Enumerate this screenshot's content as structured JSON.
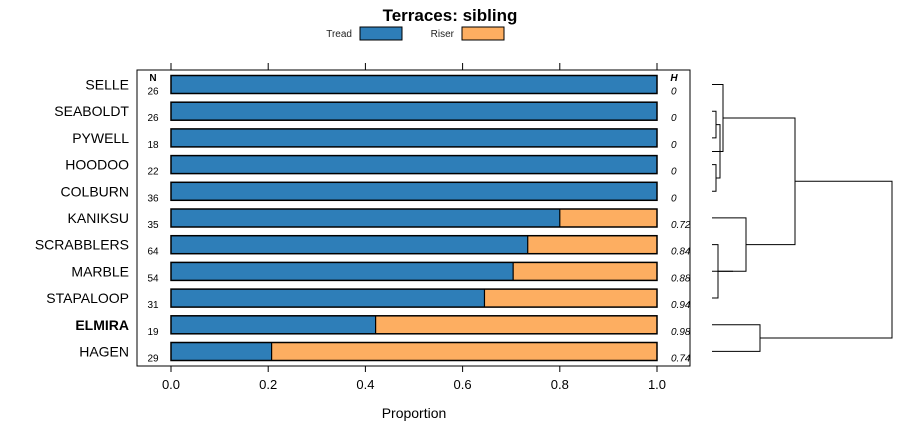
{
  "chart_data": {
    "type": "bar",
    "orientation": "horizontal",
    "stacked": true,
    "title": "Terraces: sibling",
    "xlabel": "Proportion",
    "ylabel": "",
    "xlim": [
      0,
      1
    ],
    "x_ticks": [
      "0.0",
      "0.2",
      "0.4",
      "0.6",
      "0.8",
      "1.0"
    ],
    "n_header": "N",
    "h_header": "H",
    "highlight": "ELMIRA",
    "categories": [
      "SELLE",
      "SEABOLDT",
      "PYWELL",
      "HOODOO",
      "COLBURN",
      "KANIKSU",
      "SCRABBLERS",
      "MARBLE",
      "STAPALOOP",
      "ELMIRA",
      "HAGEN"
    ],
    "n": [
      "26",
      "26",
      "18",
      "22",
      "36",
      "35",
      "64",
      "54",
      "31",
      "19",
      "29"
    ],
    "h": [
      "0",
      "0",
      "0",
      "0",
      "0",
      "0.72",
      "0.84",
      "0.88",
      "0.94",
      "0.98",
      "0.74"
    ],
    "series": [
      {
        "name": "Tread",
        "color": "#2E7EB8",
        "values": [
          1.0,
          1.0,
          1.0,
          1.0,
          1.0,
          0.8,
          0.734,
          0.704,
          0.645,
          0.421,
          0.207
        ]
      },
      {
        "name": "Riser",
        "color": "#FDAE61",
        "values": [
          0.0,
          0.0,
          0.0,
          0.0,
          0.0,
          0.2,
          0.266,
          0.296,
          0.355,
          0.579,
          0.793
        ]
      }
    ],
    "legend_position": "top"
  }
}
